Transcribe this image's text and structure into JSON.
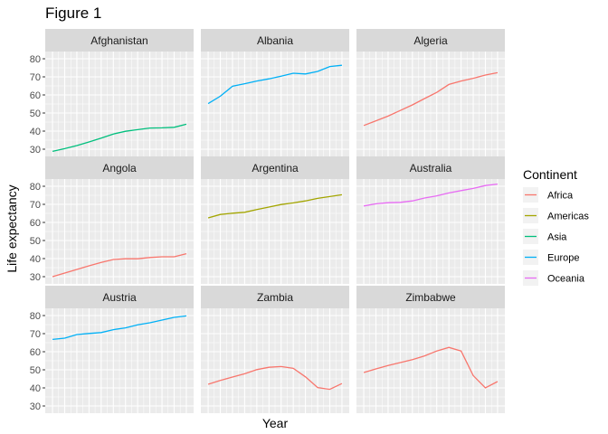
{
  "chart_data": {
    "type": "line",
    "title": "Figure 1",
    "xlabel": "Year",
    "ylabel": "Life expectancy",
    "x": [
      1952,
      1957,
      1962,
      1967,
      1972,
      1977,
      1982,
      1987,
      1992,
      1997,
      2002,
      2007
    ],
    "xlim": [
      1949,
      2010
    ],
    "ylim": [
      26,
      84
    ],
    "yticks": [
      30,
      40,
      50,
      60,
      70,
      80
    ],
    "grid": true,
    "legend": {
      "title": "Continent",
      "position": "right",
      "entries": [
        {
          "name": "Africa",
          "color": "#F8766D"
        },
        {
          "name": "Americas",
          "color": "#A3A500"
        },
        {
          "name": "Asia",
          "color": "#00BF7D"
        },
        {
          "name": "Europe",
          "color": "#00B0F6"
        },
        {
          "name": "Oceania",
          "color": "#E76BF3"
        }
      ]
    },
    "panels": [
      {
        "name": "Afghanistan",
        "continent": "Asia",
        "values": [
          28.8,
          30.3,
          32.0,
          34.0,
          36.1,
          38.4,
          39.9,
          40.8,
          41.7,
          41.8,
          42.1,
          43.8
        ]
      },
      {
        "name": "Albania",
        "continent": "Europe",
        "values": [
          55.2,
          59.3,
          64.8,
          66.2,
          67.7,
          68.9,
          70.4,
          72.0,
          71.6,
          73.0,
          75.7,
          76.4
        ]
      },
      {
        "name": "Algeria",
        "continent": "Africa",
        "values": [
          43.1,
          45.7,
          48.3,
          51.4,
          54.5,
          58.0,
          61.4,
          65.8,
          67.7,
          69.2,
          71.0,
          72.3
        ]
      },
      {
        "name": "Angola",
        "continent": "Africa",
        "values": [
          30.0,
          32.0,
          34.0,
          36.0,
          37.9,
          39.5,
          39.9,
          39.9,
          40.6,
          41.0,
          41.0,
          42.7
        ]
      },
      {
        "name": "Argentina",
        "continent": "Americas",
        "values": [
          62.5,
          64.4,
          65.1,
          65.6,
          67.1,
          68.5,
          69.9,
          70.8,
          71.9,
          73.3,
          74.3,
          75.3
        ]
      },
      {
        "name": "Australia",
        "continent": "Oceania",
        "values": [
          69.1,
          70.3,
          70.9,
          71.1,
          71.9,
          73.5,
          74.7,
          76.3,
          77.6,
          78.8,
          80.4,
          81.2
        ]
      },
      {
        "name": "Austria",
        "continent": "Europe",
        "values": [
          66.8,
          67.5,
          69.5,
          70.1,
          70.6,
          72.2,
          73.2,
          74.9,
          76.0,
          77.5,
          79.0,
          79.8
        ]
      },
      {
        "name": "Zambia",
        "continent": "Africa",
        "values": [
          42.0,
          44.1,
          46.0,
          47.8,
          50.1,
          51.4,
          51.8,
          50.8,
          46.1,
          40.2,
          39.2,
          42.4
        ]
      },
      {
        "name": "Zimbabwe",
        "continent": "Africa",
        "values": [
          48.5,
          50.5,
          52.4,
          54.0,
          55.6,
          57.7,
          60.4,
          62.4,
          60.4,
          46.8,
          40.0,
          43.5
        ]
      }
    ]
  }
}
